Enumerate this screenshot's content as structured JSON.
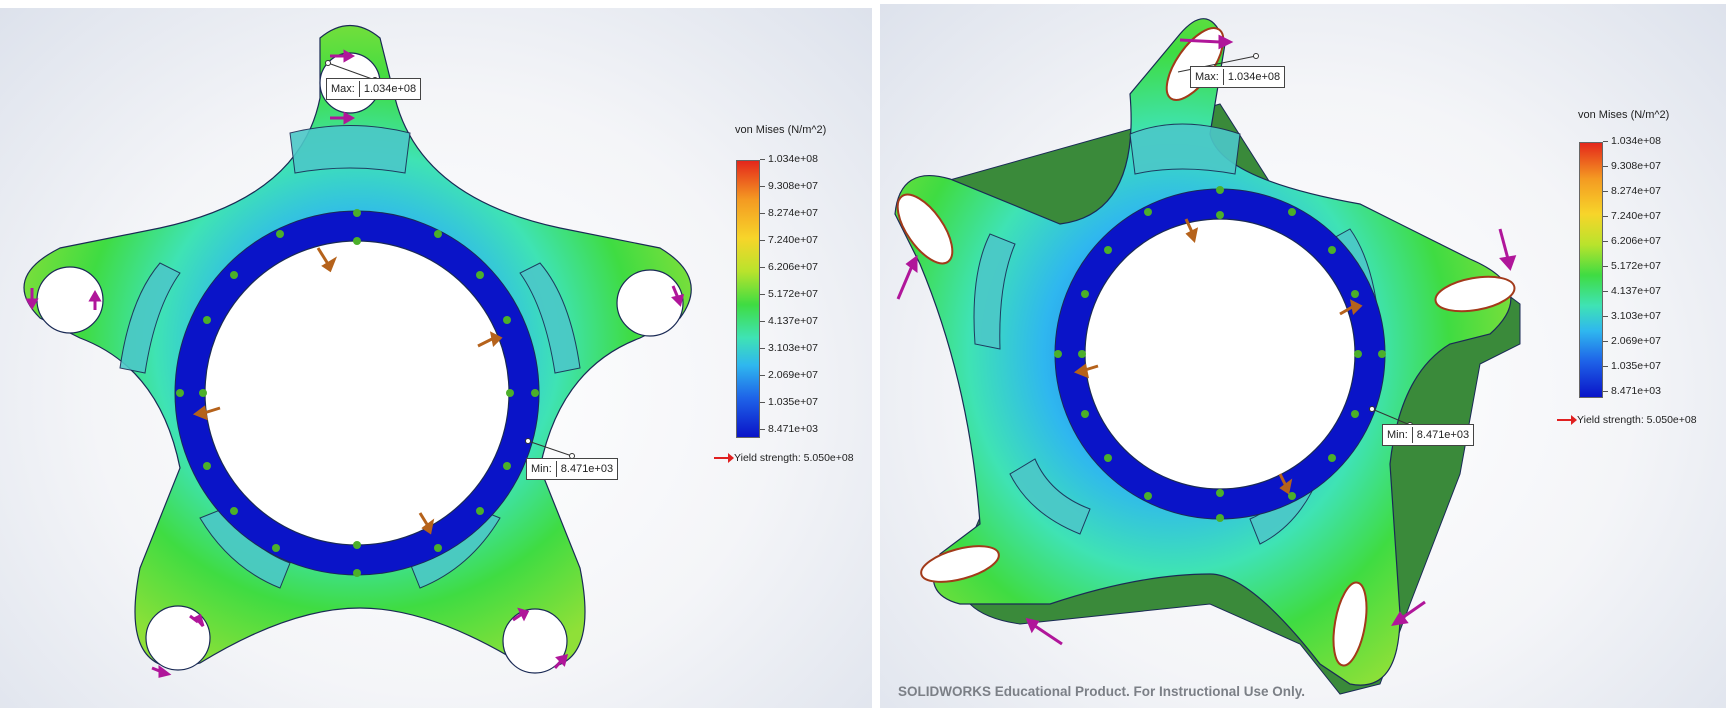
{
  "legend": {
    "title": "von Mises (N/m^2)",
    "ticks": [
      "1.034e+08",
      "9.308e+07",
      "8.274e+07",
      "7.240e+07",
      "6.206e+07",
      "5.172e+07",
      "4.137e+07",
      "3.103e+07",
      "2.069e+07",
      "1.035e+07",
      "8.471e+03"
    ],
    "yield_label": "Yield strength: 5.050e+08",
    "colors": [
      "#e4271b",
      "#f49a22",
      "#f7d52a",
      "#b9e32c",
      "#3fdc42",
      "#3fe3b4",
      "#2fb7ef",
      "#1e62e8",
      "#0a14c8"
    ]
  },
  "callouts": {
    "max_label": "Max:",
    "max_value": "1.034e+08",
    "min_label": "Min:",
    "min_value": "8.471e+03"
  },
  "watermark": "SOLIDWORKS Educational Product. For Instructional Use Only."
}
